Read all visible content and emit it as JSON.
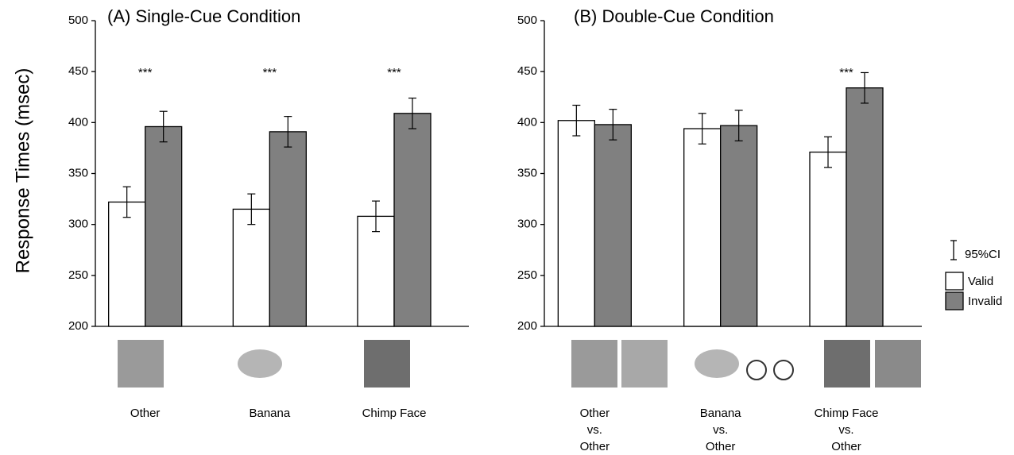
{
  "chart_data": [
    {
      "type": "bar",
      "title": "(A) Single-Cue Condition",
      "ylabel": "Response Times (msec)",
      "categories": [
        [
          "Other"
        ],
        [
          "Banana"
        ],
        [
          "Chimp Face"
        ]
      ],
      "significance": [
        "***",
        "***",
        "***"
      ],
      "series": [
        {
          "color": "#ffffff",
          "values": [
            322,
            315,
            308
          ],
          "errors": [
            15,
            15,
            15
          ]
        },
        {
          "color": "#808080",
          "values": [
            396,
            391,
            409
          ],
          "errors": [
            15,
            15,
            15
          ]
        }
      ],
      "ylim": [
        200,
        500
      ],
      "yticks": [
        200,
        250,
        300,
        350,
        400,
        450,
        500
      ]
    },
    {
      "type": "bar",
      "title": "(B) Double-Cue Condition",
      "categories": [
        [
          "Other",
          "vs.",
          "Other"
        ],
        [
          "Banana",
          "vs.",
          "Other"
        ],
        [
          "Chimp Face",
          "vs.",
          "Other"
        ]
      ],
      "significance": [
        null,
        null,
        "***"
      ],
      "series": [
        {
          "name": "Valid",
          "color": "#ffffff",
          "values": [
            402,
            394,
            371
          ],
          "errors": [
            15,
            15,
            15
          ]
        },
        {
          "name": "Invalid",
          "color": "#808080",
          "values": [
            398,
            397,
            434
          ],
          "errors": [
            15,
            15,
            15
          ]
        }
      ],
      "error_label": "95%CI",
      "ylim": [
        200,
        500
      ],
      "yticks": [
        200,
        250,
        300,
        350,
        400,
        450,
        500
      ]
    }
  ]
}
